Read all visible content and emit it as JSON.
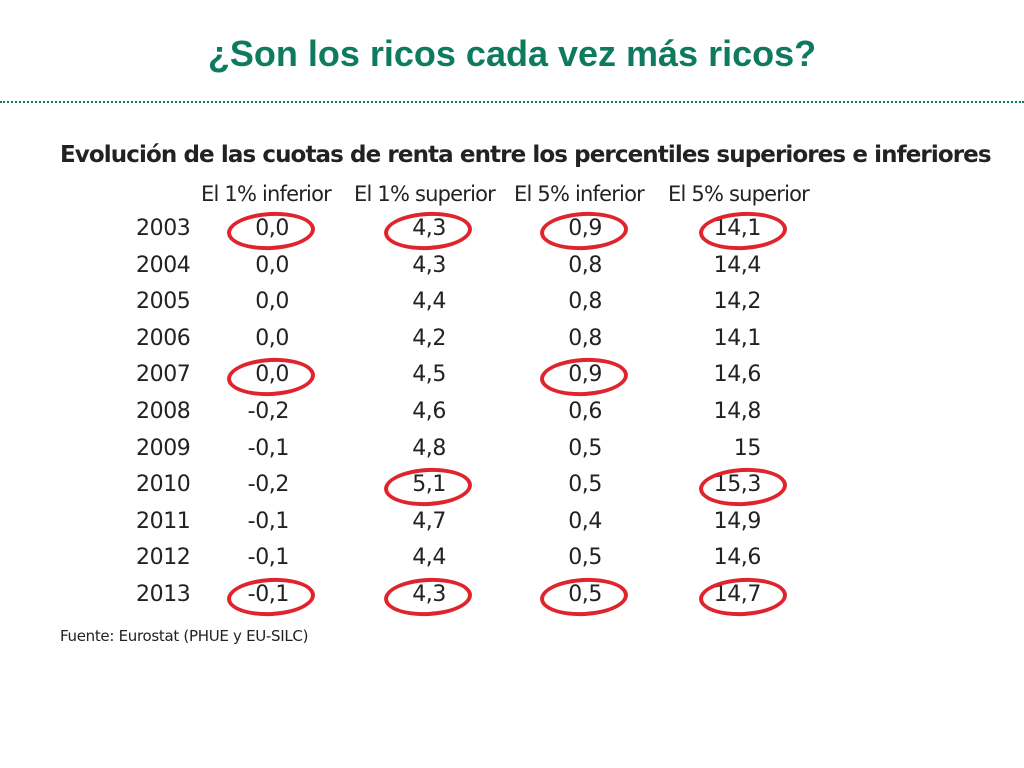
{
  "title": "¿Son los ricos cada vez más ricos?",
  "subtitle": "Evolución de las cuotas de renta entre los percentiles superiores e inferiores",
  "columns": [
    "El 1% inferior",
    "El 1% superior",
    "El 5% inferior",
    "El 5% superior"
  ],
  "rows": [
    {
      "year": "2003",
      "values": [
        "0,0",
        "4,3",
        "0,9",
        "14,1"
      ]
    },
    {
      "year": "2004",
      "values": [
        "0,0",
        "4,3",
        "0,8",
        "14,4"
      ]
    },
    {
      "year": "2005",
      "values": [
        "0,0",
        "4,4",
        "0,8",
        "14,2"
      ]
    },
    {
      "year": "2006",
      "values": [
        "0,0",
        "4,2",
        "0,8",
        "14,1"
      ]
    },
    {
      "year": "2007",
      "values": [
        "0,0",
        "4,5",
        "0,9",
        "14,6"
      ]
    },
    {
      "year": "2008",
      "values": [
        "-0,2",
        "4,6",
        "0,6",
        "14,8"
      ]
    },
    {
      "year": "2009",
      "values": [
        "-0,1",
        "4,8",
        "0,5",
        "15"
      ]
    },
    {
      "year": "2010",
      "values": [
        "-0,2",
        "5,1",
        "0,5",
        "15,3"
      ]
    },
    {
      "year": "2011",
      "values": [
        "-0,1",
        "4,7",
        "0,4",
        "14,9"
      ]
    },
    {
      "year": "2012",
      "values": [
        "-0,1",
        "4,4",
        "0,5",
        "14,6"
      ]
    },
    {
      "year": "2013",
      "values": [
        "-0,1",
        "4,3",
        "0,5",
        "14,7"
      ]
    }
  ],
  "highlighted": [
    [
      "2003",
      0
    ],
    [
      "2003",
      1
    ],
    [
      "2003",
      2
    ],
    [
      "2003",
      3
    ],
    [
      "2007",
      0
    ],
    [
      "2007",
      2
    ],
    [
      "2010",
      1
    ],
    [
      "2010",
      3
    ],
    [
      "2013",
      0
    ],
    [
      "2013",
      1
    ],
    [
      "2013",
      2
    ],
    [
      "2013",
      3
    ]
  ],
  "source": "Fuente: Eurostat (PHUE y EU-SILC)",
  "colors": {
    "title": "#0e7a5e",
    "highlight": "#e0242d"
  }
}
